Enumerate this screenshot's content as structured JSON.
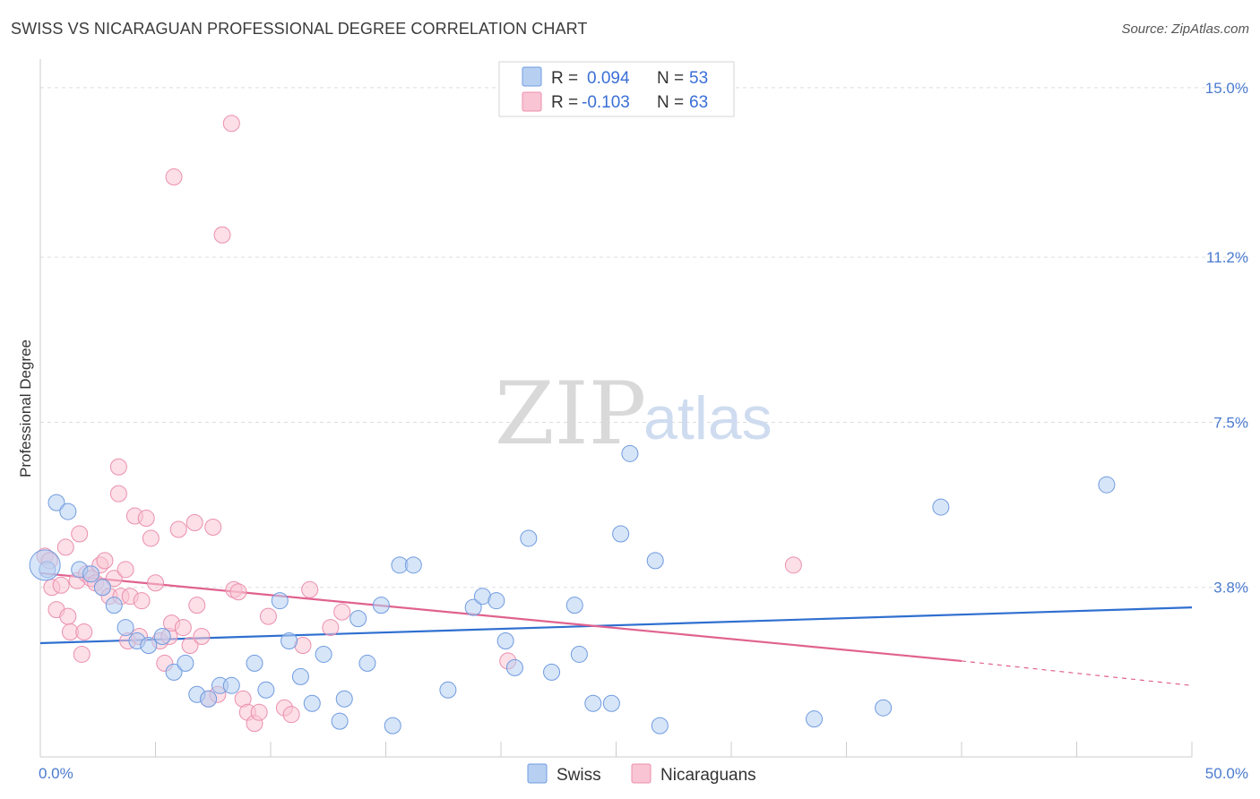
{
  "chart_data": {
    "type": "scatter",
    "title": "SWISS VS NICARAGUAN PROFESSIONAL DEGREE CORRELATION CHART",
    "source": "Source: ZipAtlas.com",
    "ylabel": "Professional Degree",
    "xlim": [
      0,
      50
    ],
    "ylim": [
      0,
      15.4
    ],
    "x_tick_labels": [
      "0.0%",
      "50.0%"
    ],
    "y_ticks": [
      3.8,
      7.5,
      11.2,
      15.0
    ],
    "y_tick_labels": [
      "3.8%",
      "7.5%",
      "11.2%",
      "15.0%"
    ],
    "grid": true,
    "legend": {
      "placement": "top-center",
      "entries": [
        {
          "r_label": "R =",
          "r_value": "0.094",
          "n_label": "N =",
          "n_value": "53"
        },
        {
          "r_label": "R =",
          "r_value": "-0.103",
          "n_label": "N =",
          "n_value": "63"
        }
      ]
    },
    "watermark": {
      "zip": "ZIP",
      "atlas": "atlas"
    },
    "colors": {
      "swiss_fill": "#b7d0f2",
      "swiss_stroke": "#6f9be0",
      "swiss_line": "#2f6fd0",
      "nic_fill": "#f9c4d4",
      "nic_stroke": "#eb8fae",
      "nic_line": "#e0628f",
      "grid": "#dddddd",
      "axis": "#cccccc"
    },
    "series": [
      {
        "name": "Swiss",
        "trend": {
          "x0": 0,
          "y0": 2.55,
          "x1": 50,
          "y1": 3.35
        },
        "points": [
          [
            0.3,
            4.2
          ],
          [
            0.7,
            5.7
          ],
          [
            1.2,
            5.5
          ],
          [
            1.7,
            4.2
          ],
          [
            2.2,
            4.1
          ],
          [
            2.7,
            3.8
          ],
          [
            3.2,
            3.4
          ],
          [
            3.7,
            2.9
          ],
          [
            4.2,
            2.6
          ],
          [
            4.7,
            2.5
          ],
          [
            5.3,
            2.7
          ],
          [
            5.8,
            1.9
          ],
          [
            6.3,
            2.1
          ],
          [
            6.8,
            1.4
          ],
          [
            7.3,
            1.3
          ],
          [
            7.8,
            1.6
          ],
          [
            8.3,
            1.6
          ],
          [
            9.3,
            2.1
          ],
          [
            9.8,
            1.5
          ],
          [
            10.4,
            3.5
          ],
          [
            10.8,
            2.6
          ],
          [
            11.3,
            1.8
          ],
          [
            11.8,
            1.2
          ],
          [
            12.3,
            2.3
          ],
          [
            13.0,
            0.8
          ],
          [
            13.2,
            1.3
          ],
          [
            13.8,
            3.1
          ],
          [
            14.2,
            2.1
          ],
          [
            14.8,
            3.4
          ],
          [
            15.3,
            0.7
          ],
          [
            15.6,
            4.3
          ],
          [
            16.2,
            4.3
          ],
          [
            17.7,
            1.5
          ],
          [
            18.8,
            3.35
          ],
          [
            19.2,
            3.6
          ],
          [
            19.8,
            3.5
          ],
          [
            20.2,
            2.6
          ],
          [
            20.6,
            2.0
          ],
          [
            21.2,
            4.9
          ],
          [
            22.2,
            1.9
          ],
          [
            23.2,
            3.4
          ],
          [
            23.4,
            2.3
          ],
          [
            24.0,
            1.2
          ],
          [
            24.8,
            1.2
          ],
          [
            25.2,
            5.0
          ],
          [
            25.6,
            6.8
          ],
          [
            26.7,
            4.4
          ],
          [
            26.9,
            0.7
          ],
          [
            33.6,
            0.85
          ],
          [
            36.6,
            1.1
          ],
          [
            39.1,
            5.6
          ],
          [
            46.3,
            6.1
          ],
          [
            0.2,
            4.3
          ]
        ]
      },
      {
        "name": "Nicaraguans",
        "trend": {
          "x0": 0,
          "y0": 4.12,
          "x1": 40,
          "y1": 2.15,
          "dash_x1": 50,
          "dash_y1": 1.6
        },
        "points": [
          [
            0.2,
            4.5
          ],
          [
            0.4,
            4.4
          ],
          [
            0.5,
            3.8
          ],
          [
            0.7,
            3.3
          ],
          [
            0.9,
            3.85
          ],
          [
            1.1,
            4.7
          ],
          [
            1.2,
            3.15
          ],
          [
            1.3,
            2.8
          ],
          [
            1.6,
            3.95
          ],
          [
            1.7,
            5.0
          ],
          [
            1.8,
            2.3
          ],
          [
            1.9,
            2.8
          ],
          [
            2.0,
            4.1
          ],
          [
            2.2,
            4.0
          ],
          [
            2.4,
            3.9
          ],
          [
            2.6,
            4.3
          ],
          [
            2.7,
            3.8
          ],
          [
            2.8,
            4.4
          ],
          [
            3.0,
            3.6
          ],
          [
            3.2,
            4.0
          ],
          [
            3.4,
            6.5
          ],
          [
            3.4,
            5.9
          ],
          [
            3.5,
            3.6
          ],
          [
            3.7,
            4.2
          ],
          [
            3.8,
            2.6
          ],
          [
            3.9,
            3.6
          ],
          [
            4.1,
            5.4
          ],
          [
            4.3,
            2.7
          ],
          [
            4.4,
            3.5
          ],
          [
            4.6,
            5.35
          ],
          [
            4.8,
            4.9
          ],
          [
            5.0,
            3.9
          ],
          [
            5.2,
            2.6
          ],
          [
            5.4,
            2.1
          ],
          [
            5.6,
            2.7
          ],
          [
            5.7,
            3.0
          ],
          [
            5.8,
            13.0
          ],
          [
            6.0,
            5.1
          ],
          [
            6.2,
            2.9
          ],
          [
            6.5,
            2.5
          ],
          [
            6.7,
            5.25
          ],
          [
            6.8,
            3.4
          ],
          [
            7.0,
            2.7
          ],
          [
            7.3,
            1.3
          ],
          [
            7.5,
            5.15
          ],
          [
            7.7,
            1.4
          ],
          [
            7.9,
            11.7
          ],
          [
            8.3,
            14.2
          ],
          [
            8.4,
            3.75
          ],
          [
            8.6,
            3.7
          ],
          [
            8.8,
            1.3
          ],
          [
            9.0,
            1.0
          ],
          [
            9.3,
            0.75
          ],
          [
            9.5,
            1.0
          ],
          [
            9.9,
            3.15
          ],
          [
            10.6,
            1.1
          ],
          [
            10.9,
            0.95
          ],
          [
            11.4,
            2.5
          ],
          [
            11.7,
            3.75
          ],
          [
            12.6,
            2.9
          ],
          [
            13.1,
            3.25
          ],
          [
            20.3,
            2.15
          ],
          [
            32.7,
            4.3
          ]
        ]
      }
    ]
  },
  "bottom_legend": [
    {
      "label": "Swiss"
    },
    {
      "label": "Nicaraguans"
    }
  ]
}
